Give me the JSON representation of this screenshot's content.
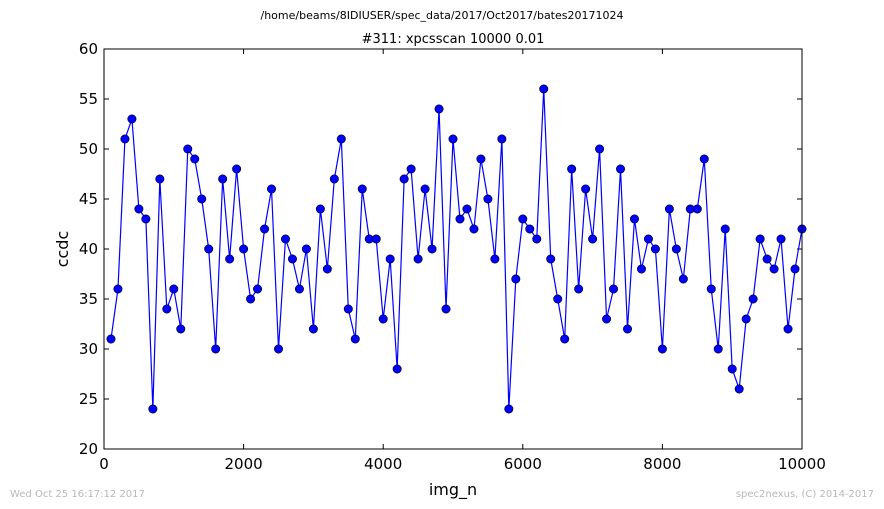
{
  "footer": {
    "timestamp": "Wed Oct 25 16:17:12 2017",
    "credit": "spec2nexus, (C) 2014-2017"
  },
  "chart_data": {
    "type": "line",
    "suptitle": "/home/beams/8IDIUSER/spec_data/2017/Oct2017/bates20171024",
    "title": "#311: xpcsscan 10000 0.01",
    "xlabel": "img_n",
    "ylabel": "ccdc",
    "xlim": [
      0,
      10000
    ],
    "ylim": [
      20,
      60
    ],
    "xticks": [
      0,
      2000,
      4000,
      6000,
      8000,
      10000
    ],
    "yticks": [
      20,
      25,
      30,
      35,
      40,
      45,
      50,
      55,
      60
    ],
    "grid": false,
    "line_color": "#0000ff",
    "marker_color": "#0000ff",
    "series": [
      {
        "x": [
          100,
          200,
          300,
          400,
          500,
          600,
          700,
          800,
          900,
          1000,
          1100,
          1200,
          1300,
          1400,
          1500,
          1600,
          1700,
          1800,
          1900,
          2000,
          2100,
          2200,
          2300,
          2400,
          2500,
          2600,
          2700,
          2800,
          2900,
          3000,
          3100,
          3200,
          3300,
          3400,
          3500,
          3600,
          3700,
          3800,
          3900,
          4000,
          4100,
          4200,
          4300,
          4400,
          4500,
          4600,
          4700,
          4800,
          4900,
          5000,
          5100,
          5200,
          5300,
          5400,
          5500,
          5600,
          5700,
          5800,
          5900,
          6000,
          6100,
          6200,
          6300,
          6400,
          6500,
          6600,
          6700,
          6800,
          6900,
          7000,
          7100,
          7200,
          7300,
          7400,
          7500,
          7600,
          7700,
          7800,
          7900,
          8000,
          8100,
          8200,
          8300,
          8400,
          8500,
          8600,
          8700,
          8800,
          8900,
          9000,
          9100,
          9200,
          9300,
          9400,
          9500,
          9600,
          9700,
          9800,
          9900,
          10000
        ],
        "y": [
          31,
          36,
          51,
          53,
          44,
          43,
          24,
          47,
          34,
          36,
          32,
          50,
          49,
          45,
          40,
          30,
          47,
          39,
          48,
          40,
          35,
          36,
          42,
          46,
          30,
          41,
          39,
          36,
          40,
          32,
          44,
          38,
          47,
          51,
          34,
          31,
          46,
          41,
          41,
          33,
          39,
          28,
          47,
          48,
          39,
          46,
          40,
          54,
          34,
          51,
          43,
          44,
          42,
          49,
          45,
          39,
          51,
          24,
          37,
          43,
          42,
          41,
          56,
          39,
          35,
          31,
          48,
          36,
          46,
          41,
          50,
          33,
          36,
          48,
          32,
          43,
          38,
          41,
          40,
          30,
          44,
          40,
          37,
          44,
          44,
          49,
          36,
          30,
          42,
          28,
          26,
          33,
          35,
          41,
          39,
          38,
          41,
          32,
          38,
          42
        ]
      }
    ]
  }
}
